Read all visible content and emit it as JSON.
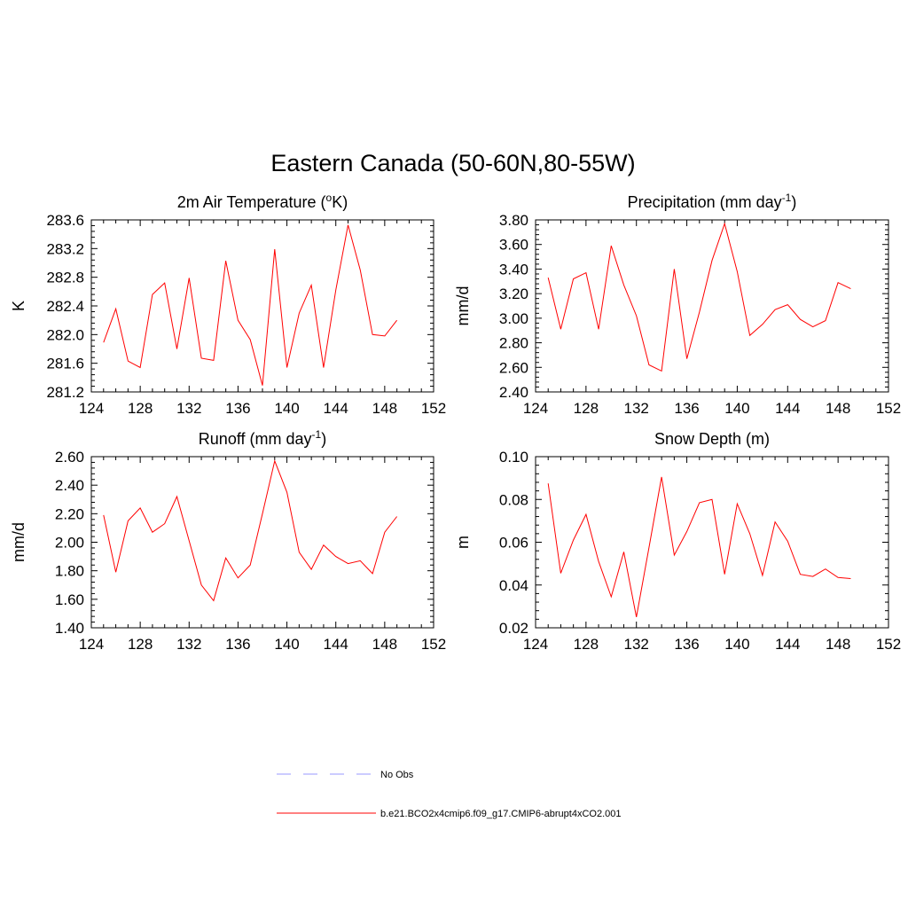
{
  "figure": {
    "title": "Eastern Canada (50-60N,80-55W)"
  },
  "legend": {
    "obs_label": "No Obs",
    "obs_color": "#9999ff",
    "model_label": "b.e21.BCO2x4cmip6.f09_g17.CMIP6-abrupt4xCO2.001",
    "model_color": "#ff0000"
  },
  "chart_data": [
    {
      "type": "line",
      "title": "2m Air Temperature (",
      "title_sup": "o",
      "title_after": "K)",
      "ylabel": "K",
      "xlim": [
        124,
        152
      ],
      "ylim": [
        281.2,
        283.6
      ],
      "xticks": [
        124,
        128,
        132,
        136,
        140,
        144,
        148,
        152
      ],
      "yticks": [
        "281.2",
        "281.6",
        "282.0",
        "282.4",
        "282.8",
        "283.2",
        "283.6"
      ],
      "x": [
        125,
        126,
        127,
        128,
        129,
        130,
        131,
        132,
        133,
        134,
        135,
        136,
        137,
        138,
        139,
        140,
        141,
        142,
        143,
        144,
        145,
        146,
        147,
        148,
        149
      ],
      "series": [
        {
          "name": "b.e21.BCO2x4cmip6.f09_g17.CMIP6-abrupt4xCO2.001",
          "values": [
            281.89,
            282.36,
            281.63,
            281.54,
            282.56,
            282.72,
            281.8,
            282.79,
            281.67,
            281.64,
            283.03,
            282.2,
            281.93,
            281.29,
            283.19,
            281.54,
            282.3,
            282.69,
            281.54,
            282.62,
            283.53,
            282.9,
            282.0,
            281.98,
            282.2
          ]
        }
      ]
    },
    {
      "type": "line",
      "title": "Precipitation (mm day",
      "title_sup": "-1",
      "title_after": ")",
      "ylabel": "mm/d",
      "xlim": [
        124,
        152
      ],
      "ylim": [
        2.4,
        3.8
      ],
      "xticks": [
        124,
        128,
        132,
        136,
        140,
        144,
        148,
        152
      ],
      "yticks": [
        "2.40",
        "2.60",
        "2.80",
        "3.00",
        "3.20",
        "3.40",
        "3.60",
        "3.80"
      ],
      "x": [
        125,
        126,
        127,
        128,
        129,
        130,
        131,
        132,
        133,
        134,
        135,
        136,
        137,
        138,
        139,
        140,
        141,
        142,
        143,
        144,
        145,
        146,
        147,
        148,
        149
      ],
      "series": [
        {
          "name": "b.e21.BCO2x4cmip6.f09_g17.CMIP6-abrupt4xCO2.001",
          "values": [
            3.33,
            2.91,
            3.32,
            3.37,
            2.91,
            3.59,
            3.27,
            3.02,
            2.62,
            2.57,
            3.4,
            2.67,
            3.05,
            3.47,
            3.77,
            3.38,
            2.86,
            2.95,
            3.07,
            3.11,
            2.99,
            2.93,
            2.98,
            3.29,
            3.24
          ]
        }
      ]
    },
    {
      "type": "line",
      "title": "Runoff (mm day",
      "title_sup": "-1",
      "title_after": ")",
      "ylabel": "mm/d",
      "xlim": [
        124,
        152
      ],
      "ylim": [
        1.4,
        2.6
      ],
      "xticks": [
        124,
        128,
        132,
        136,
        140,
        144,
        148,
        152
      ],
      "yticks": [
        "1.40",
        "1.60",
        "1.80",
        "2.00",
        "2.20",
        "2.40",
        "2.60"
      ],
      "x": [
        125,
        126,
        127,
        128,
        129,
        130,
        131,
        132,
        133,
        134,
        135,
        136,
        137,
        138,
        139,
        140,
        141,
        142,
        143,
        144,
        145,
        146,
        147,
        148,
        149
      ],
      "series": [
        {
          "name": "b.e21.BCO2x4cmip6.f09_g17.CMIP6-abrupt4xCO2.001",
          "values": [
            2.19,
            1.79,
            2.15,
            2.24,
            2.07,
            2.13,
            2.32,
            2.01,
            1.7,
            1.59,
            1.89,
            1.75,
            1.84,
            2.2,
            2.57,
            2.35,
            1.93,
            1.81,
            1.98,
            1.9,
            1.85,
            1.87,
            1.78,
            2.07,
            2.18
          ]
        }
      ]
    },
    {
      "type": "line",
      "title": "Snow Depth (m)",
      "title_sup": "",
      "title_after": "",
      "ylabel": "m",
      "xlim": [
        124,
        152
      ],
      "ylim": [
        0.02,
        0.1
      ],
      "xticks": [
        124,
        128,
        132,
        136,
        140,
        144,
        148,
        152
      ],
      "yticks": [
        "0.02",
        "0.04",
        "0.06",
        "0.08",
        "0.10"
      ],
      "x": [
        125,
        126,
        127,
        128,
        129,
        130,
        131,
        132,
        133,
        134,
        135,
        136,
        137,
        138,
        139,
        140,
        141,
        142,
        143,
        144,
        145,
        146,
        147,
        148,
        149
      ],
      "series": [
        {
          "name": "b.e21.BCO2x4cmip6.f09_g17.CMIP6-abrupt4xCO2.001",
          "values": [
            0.0875,
            0.0455,
            0.061,
            0.073,
            0.051,
            0.0345,
            0.0555,
            0.025,
            0.0575,
            0.0905,
            0.054,
            0.065,
            0.0785,
            0.08,
            0.045,
            0.078,
            0.064,
            0.0445,
            0.0695,
            0.0605,
            0.045,
            0.044,
            0.0475,
            0.0435,
            0.043
          ]
        }
      ]
    }
  ]
}
